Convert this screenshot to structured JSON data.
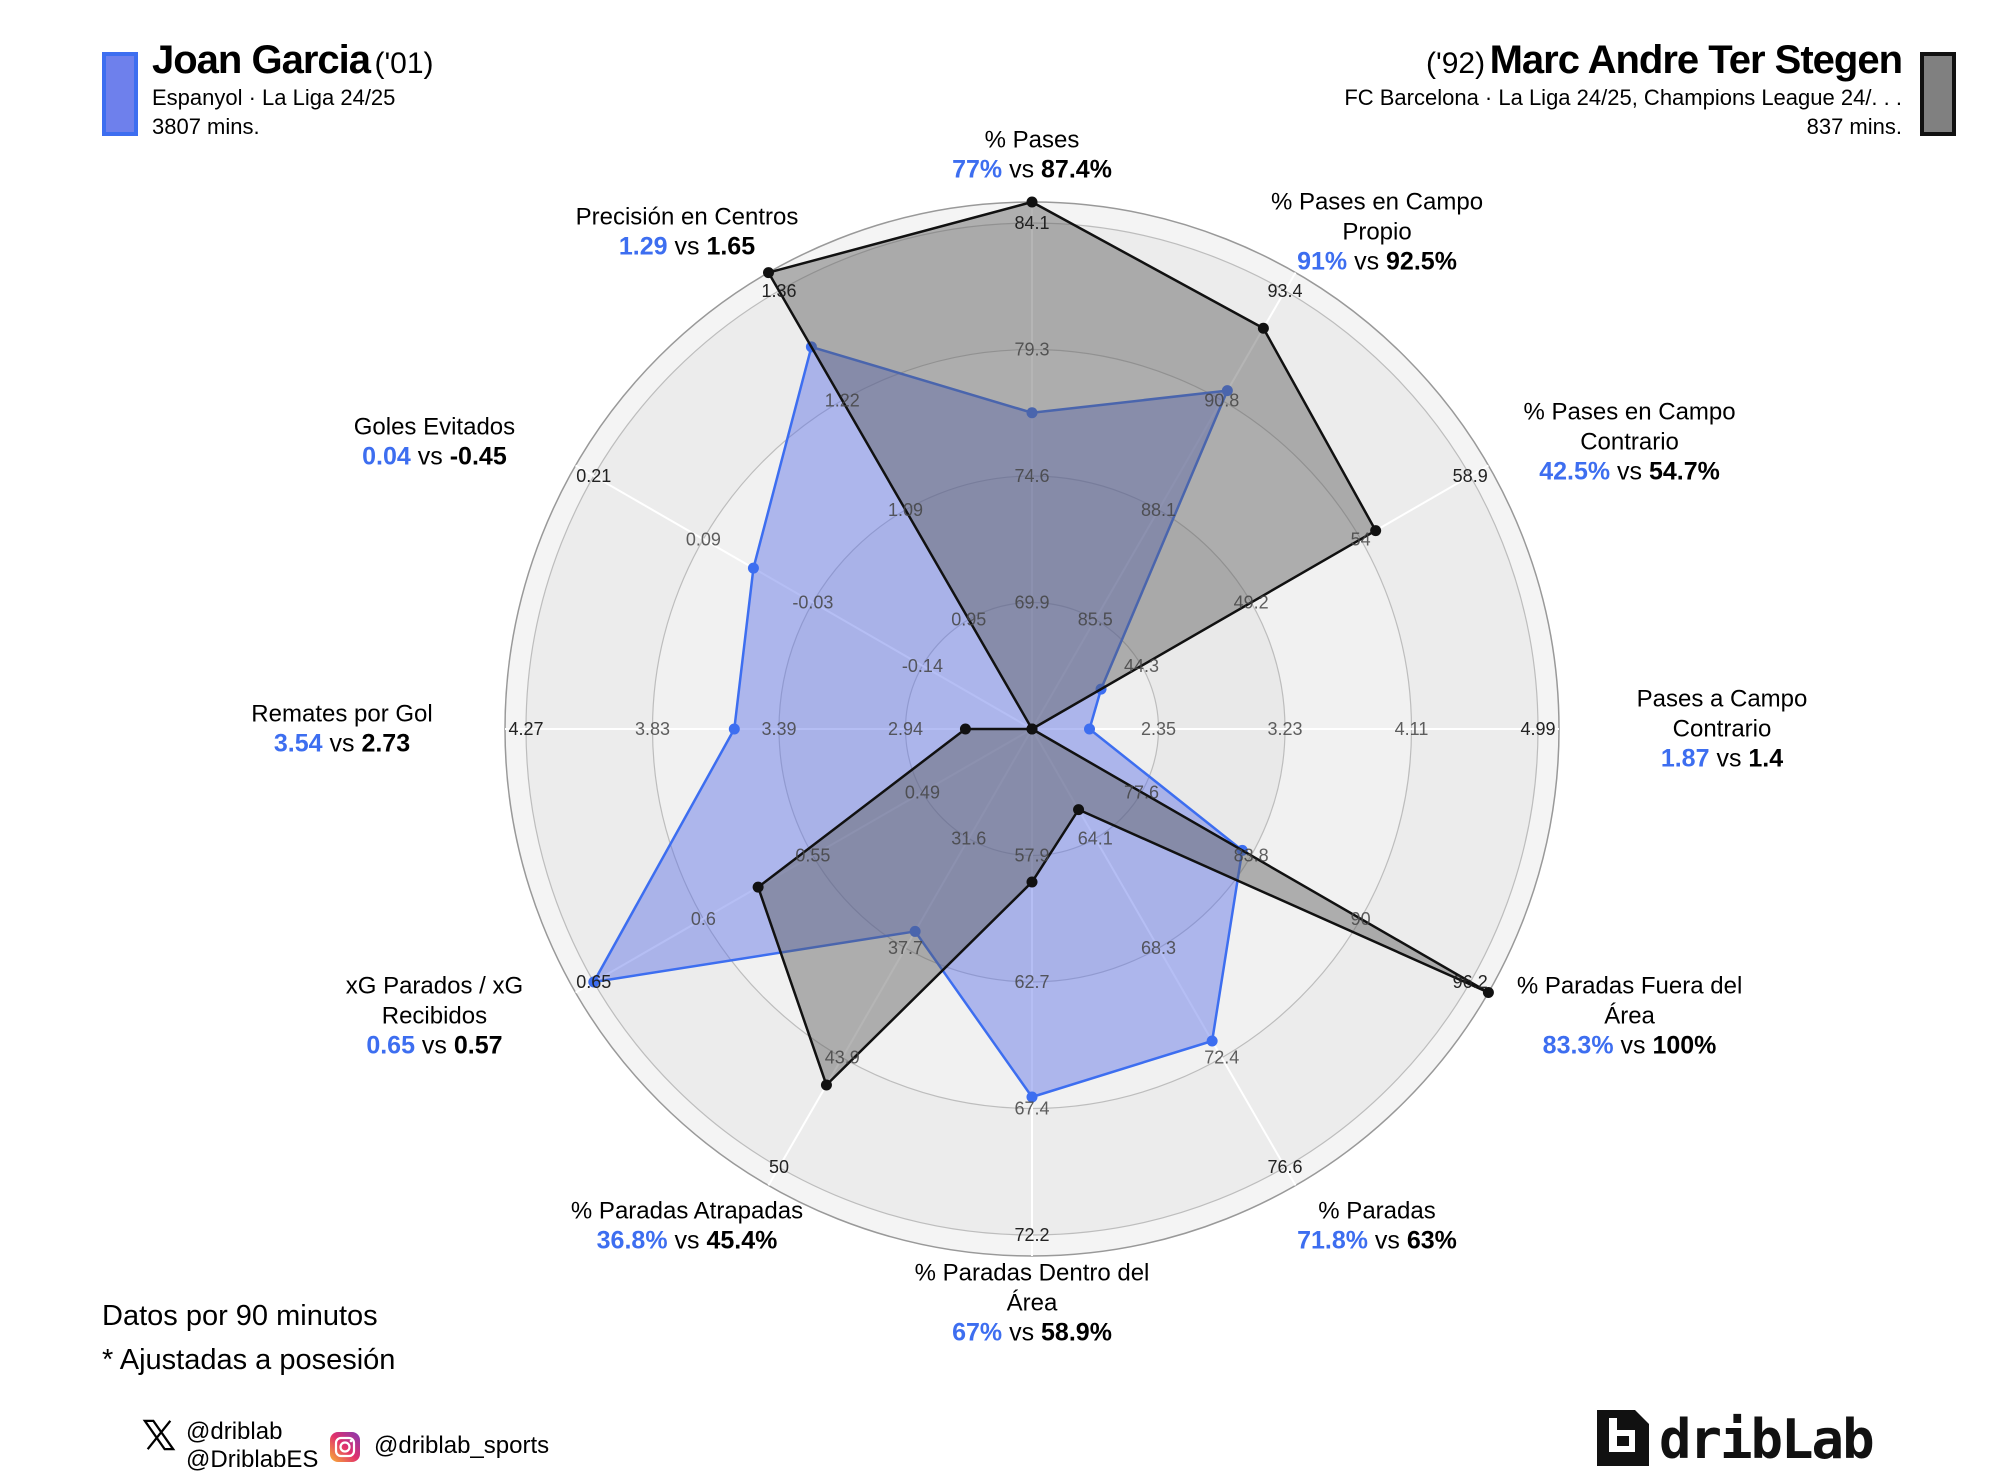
{
  "players": [
    {
      "name": "Joan Garcia",
      "year": "('01)",
      "team_line": "Espanyol · La Liga 24/25",
      "minutes": "3807 mins.",
      "color": "#3d6ef0",
      "fill": "#6e80ec"
    },
    {
      "name": "Marc Andre Ter Stegen",
      "year": "('92)",
      "team_line": "FC Barcelona · La Liga 24/25, Champions League 24/. . .",
      "minutes": "837 mins.",
      "color": "#111111",
      "fill": "#808080"
    }
  ],
  "notes": [
    "Datos por 90 minutos",
    "* Ajustadas a posesión"
  ],
  "social": {
    "x_handles": [
      "@driblab",
      "@DriblabES"
    ],
    "instagram": "@driblab_sports",
    "logo_text": "dribLab"
  },
  "chart_data": {
    "type": "radar",
    "series": [
      {
        "name": "Joan Garcia",
        "color": "#3d6ef0",
        "values": [
          77,
          91,
          42.5,
          1.87,
          83.3,
          71.8,
          67,
          36.8,
          0.65,
          3.54,
          0.04,
          1.29
        ]
      },
      {
        "name": "Marc Andre Ter Stegen",
        "color": "#111111",
        "values": [
          87.4,
          92.5,
          54.7,
          1.4,
          100,
          63,
          58.9,
          45.4,
          0.57,
          2.73,
          -0.45,
          1.65
        ]
      }
    ],
    "axes": [
      {
        "label": [
          "% Pases"
        ],
        "display": [
          "77%",
          "87.4%"
        ],
        "ticks": [
          "69.9",
          "74.6",
          "79.3",
          "84.1"
        ]
      },
      {
        "label": [
          "% Pases en Campo",
          "Propio"
        ],
        "display": [
          "91%",
          "92.5%"
        ],
        "ticks": [
          "85.5",
          "88.1",
          "90.8",
          "93.4"
        ]
      },
      {
        "label": [
          "% Pases en Campo",
          "Contrario"
        ],
        "display": [
          "42.5%",
          "54.7%"
        ],
        "ticks": [
          "44.3",
          "49.2",
          "54",
          "58.9"
        ]
      },
      {
        "label": [
          "Pases a Campo",
          "Contrario"
        ],
        "display": [
          "1.87",
          "1.4"
        ],
        "ticks": [
          "2.35",
          "3.23",
          "4.11",
          "4.99"
        ]
      },
      {
        "label": [
          "% Paradas Fuera del",
          "Área"
        ],
        "display": [
          "83.3%",
          "100%"
        ],
        "ticks": [
          "77.6",
          "83.8",
          "90",
          "96.2"
        ]
      },
      {
        "label": [
          "% Paradas"
        ],
        "display": [
          "71.8%",
          "63%"
        ],
        "ticks": [
          "64.1",
          "68.3",
          "72.4",
          "76.6"
        ]
      },
      {
        "label": [
          "% Paradas Dentro del",
          "Área"
        ],
        "display": [
          "67%",
          "58.9%"
        ],
        "ticks": [
          "57.9",
          "62.7",
          "67.4",
          "72.2"
        ]
      },
      {
        "label": [
          "% Paradas Atrapadas"
        ],
        "display": [
          "36.8%",
          "45.4%"
        ],
        "ticks": [
          "31.6",
          "37.7",
          "43.9",
          "50"
        ]
      },
      {
        "label": [
          "xG Parados / xG",
          "Recibidos"
        ],
        "display": [
          "0.65",
          "0.57"
        ],
        "ticks": [
          "0.49",
          "0.55",
          "0.6",
          "0.65"
        ]
      },
      {
        "label": [
          "Remates por Gol"
        ],
        "display": [
          "3.54",
          "2.73"
        ],
        "ticks": [
          "2.94",
          "3.39",
          "3.83",
          "4.27"
        ]
      },
      {
        "label": [
          "Goles Evitados"
        ],
        "display": [
          "0.04",
          "-0.45"
        ],
        "ticks": [
          "-0.14",
          "-0.03",
          "0.09",
          "0.21"
        ]
      },
      {
        "label": [
          "Precisión en Centros"
        ],
        "display": [
          "1.29",
          "1.65"
        ],
        "ticks": [
          "0.95",
          "1.09",
          "1.22",
          "1.36"
        ]
      }
    ],
    "vs_word": "vs",
    "grid": true
  }
}
